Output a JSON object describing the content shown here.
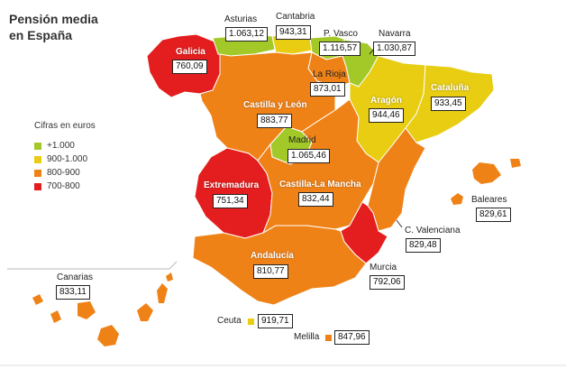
{
  "title_line1": "Pensión media",
  "title_line2": "en España",
  "legend": {
    "title": "Cifras en euros",
    "items": [
      {
        "label": "+1.000",
        "color": "#a3c928"
      },
      {
        "label": "900-1.000",
        "color": "#e8cd12"
      },
      {
        "label": "800-900",
        "color": "#ef8217"
      },
      {
        "label": "700-800",
        "color": "#e41e1e"
      }
    ]
  },
  "regions": {
    "galicia": {
      "name": "Galicia",
      "value": "760,09"
    },
    "asturias": {
      "name": "Asturias",
      "value": "1.063,12"
    },
    "cantabria": {
      "name": "Cantabria",
      "value": "943,31"
    },
    "pvasco": {
      "name": "P. Vasco",
      "value": "1.116,57"
    },
    "navarra": {
      "name": "Navarra",
      "value": "1.030,87"
    },
    "larioja": {
      "name": "La Rioja",
      "value": "873,01"
    },
    "aragon": {
      "name": "Aragón",
      "value": "944,46"
    },
    "cataluna": {
      "name": "Cataluña",
      "value": "933,45"
    },
    "castillaleon": {
      "name": "Castilla y León",
      "value": "883,77"
    },
    "madrid": {
      "name": "Madrid",
      "value": "1.065,46"
    },
    "extremadura": {
      "name": "Extremadura",
      "value": "751,34"
    },
    "castillamancha": {
      "name": "Castilla-La Mancha",
      "value": "832,44"
    },
    "baleares": {
      "name": "Baleares",
      "value": "829,61"
    },
    "cvalenciana": {
      "name": "C. Valenciana",
      "value": "829,48"
    },
    "andalucia": {
      "name": "Andalucía",
      "value": "810,77"
    },
    "murcia": {
      "name": "Murcia",
      "value": "792,06"
    },
    "canarias": {
      "name": "Canarias",
      "value": "833,11"
    },
    "ceuta": {
      "name": "Ceuta",
      "value": "919,71"
    },
    "melilla": {
      "name": "Melilla",
      "value": "847,96"
    }
  },
  "colors": {
    "green": "#a3c928",
    "yellow": "#e8cd12",
    "orange": "#ef8217",
    "red": "#e41e1e"
  }
}
